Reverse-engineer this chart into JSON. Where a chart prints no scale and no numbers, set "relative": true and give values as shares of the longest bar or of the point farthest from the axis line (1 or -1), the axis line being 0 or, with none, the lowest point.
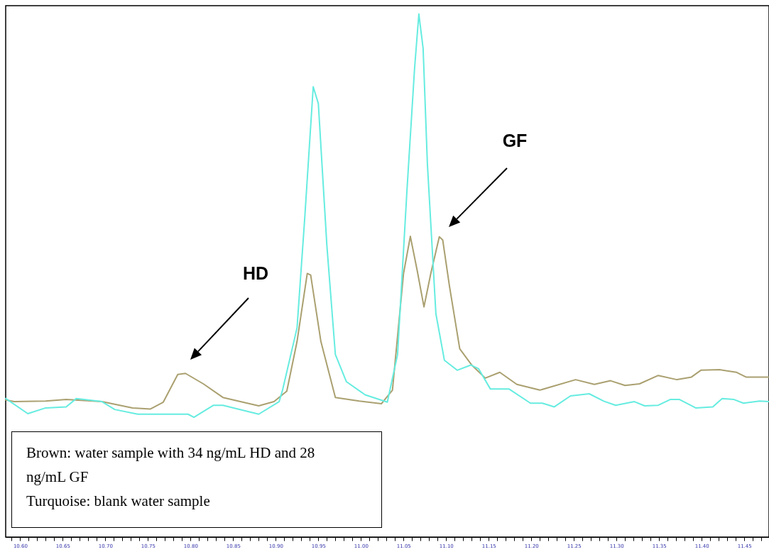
{
  "chart_data": {
    "type": "line",
    "relative": true,
    "tick_labels": "x",
    "line_style": "solid",
    "xlim": [
      10.583,
      11.479
    ],
    "xticks": [
      {
        "value": 10.59,
        "label": null
      },
      {
        "value": 10.6,
        "label": "10.60"
      },
      {
        "value": 10.61,
        "label": null
      },
      {
        "value": 10.62,
        "label": null
      },
      {
        "value": 10.63,
        "label": null
      },
      {
        "value": 10.64,
        "label": null
      },
      10.65,
      {
        "value": 10.66,
        "label": null
      },
      {
        "value": 10.67,
        "label": null
      },
      {
        "value": 10.68,
        "label": null
      },
      {
        "value": 10.69,
        "label": null
      },
      {
        "value": 10.7,
        "label": "10.70"
      },
      {
        "value": 10.71,
        "label": null
      },
      {
        "value": 10.72,
        "label": null
      },
      {
        "value": 10.73,
        "label": null
      },
      {
        "value": 10.74,
        "label": null
      },
      10.75,
      {
        "value": 10.76,
        "label": null
      },
      {
        "value": 10.77,
        "label": null
      },
      {
        "value": 10.78,
        "label": null
      },
      {
        "value": 10.79,
        "label": null
      },
      {
        "value": 10.8,
        "label": "10.80"
      },
      {
        "value": 10.81,
        "label": null
      },
      {
        "value": 10.82,
        "label": null
      },
      {
        "value": 10.83,
        "label": null
      },
      {
        "value": 10.84,
        "label": null
      },
      10.85,
      {
        "value": 10.86,
        "label": null
      },
      {
        "value": 10.87,
        "label": null
      },
      {
        "value": 10.88,
        "label": null
      },
      {
        "value": 10.89,
        "label": null
      },
      {
        "value": 10.9,
        "label": "10.90"
      },
      {
        "value": 10.91,
        "label": null
      },
      {
        "value": 10.92,
        "label": null
      },
      {
        "value": 10.93,
        "label": null
      },
      {
        "value": 10.94,
        "label": null
      },
      10.95,
      {
        "value": 10.96,
        "label": null
      },
      {
        "value": 10.97,
        "label": null
      },
      {
        "value": 10.98,
        "label": null
      },
      {
        "value": 10.99,
        "label": null
      },
      {
        "value": 11,
        "label": "11.00"
      },
      {
        "value": 11.01,
        "label": null
      },
      {
        "value": 11.02,
        "label": null
      },
      {
        "value": 11.03,
        "label": null
      },
      {
        "value": 11.04,
        "label": null
      },
      11.05,
      {
        "value": 11.06,
        "label": null
      },
      {
        "value": 11.07,
        "label": null
      },
      {
        "value": 11.08,
        "label": null
      },
      {
        "value": 11.09,
        "label": null
      },
      {
        "value": 11.1,
        "label": "11.10"
      },
      {
        "value": 11.11,
        "label": null
      },
      {
        "value": 11.12,
        "label": null
      },
      {
        "value": 11.13,
        "label": null
      },
      {
        "value": 11.14,
        "label": null
      },
      11.15,
      {
        "value": 11.16,
        "label": null
      },
      {
        "value": 11.17,
        "label": null
      },
      {
        "value": 11.18,
        "label": null
      },
      {
        "value": 11.19,
        "label": null
      },
      {
        "value": 11.2,
        "label": "11.20"
      },
      {
        "value": 11.21,
        "label": null
      },
      {
        "value": 11.22,
        "label": null
      },
      {
        "value": 11.23,
        "label": null
      },
      {
        "value": 11.24,
        "label": null
      },
      11.25,
      {
        "value": 11.26,
        "label": null
      },
      {
        "value": 11.27,
        "label": null
      },
      {
        "value": 11.28,
        "label": null
      },
      {
        "value": 11.29,
        "label": null
      },
      {
        "value": 11.3,
        "label": "11.30"
      },
      {
        "value": 11.31,
        "label": null
      },
      {
        "value": 11.32,
        "label": null
      },
      {
        "value": 11.33,
        "label": null
      },
      {
        "value": 11.34,
        "label": null
      },
      11.35,
      {
        "value": 11.36,
        "label": null
      },
      {
        "value": 11.37,
        "label": null
      },
      {
        "value": 11.38,
        "label": null
      },
      {
        "value": 11.39,
        "label": null
      },
      {
        "value": 11.4,
        "label": "11.40"
      },
      {
        "value": 11.41,
        "label": null
      },
      {
        "value": 11.42,
        "label": null
      },
      {
        "value": 11.43,
        "label": null
      },
      {
        "value": 11.44,
        "label": null
      },
      11.45,
      {
        "value": 11.46,
        "label": null
      },
      {
        "value": 11.47,
        "label": null
      }
    ],
    "series": [
      {
        "color": "#aaa070",
        "x": [
          10.583,
          10.593,
          10.63,
          10.654,
          10.696,
          10.732,
          10.753,
          10.768,
          10.785,
          10.794,
          10.815,
          10.838,
          10.88,
          10.898,
          10.913,
          10.925,
          10.937,
          10.941,
          10.953,
          10.97,
          10.998,
          11.024,
          11.037,
          11.05,
          11.058,
          11.066,
          11.074,
          11.082,
          11.092,
          11.096,
          11.104,
          11.116,
          11.13,
          11.146,
          11.163,
          11.183,
          11.21,
          11.252,
          11.274,
          11.293,
          11.31,
          11.327,
          11.349,
          11.371,
          11.388,
          11.399,
          11.421,
          11.441,
          11.452,
          11.479
        ],
        "values": [
          0.262,
          0.259,
          0.26,
          0.263,
          0.259,
          0.247,
          0.245,
          0.258,
          0.311,
          0.313,
          0.293,
          0.267,
          0.251,
          0.259,
          0.279,
          0.374,
          0.504,
          0.501,
          0.374,
          0.267,
          0.26,
          0.255,
          0.281,
          0.504,
          0.575,
          0.51,
          0.44,
          0.504,
          0.574,
          0.568,
          0.479,
          0.36,
          0.329,
          0.304,
          0.315,
          0.292,
          0.281,
          0.301,
          0.292,
          0.299,
          0.29,
          0.293,
          0.309,
          0.301,
          0.306,
          0.319,
          0.32,
          0.315,
          0.306,
          0.306
        ]
      },
      {
        "color": "#66ece0",
        "x": [
          10.583,
          10.609,
          10.63,
          10.654,
          10.666,
          10.696,
          10.711,
          10.738,
          10.797,
          10.804,
          10.827,
          10.838,
          10.88,
          10.904,
          10.908,
          10.925,
          10.934,
          10.944,
          10.95,
          10.96,
          10.97,
          10.983,
          11.005,
          11.031,
          11.043,
          11.054,
          11.063,
          11.068,
          11.073,
          11.078,
          11.088,
          11.098,
          11.113,
          11.129,
          11.138,
          11.152,
          11.174,
          11.199,
          11.213,
          11.227,
          11.246,
          11.268,
          11.285,
          11.299,
          11.321,
          11.333,
          11.349,
          11.363,
          11.374,
          11.393,
          11.413,
          11.424,
          11.438,
          11.449,
          11.468,
          11.479
        ],
        "values": [
          0.265,
          0.236,
          0.247,
          0.249,
          0.265,
          0.259,
          0.244,
          0.235,
          0.235,
          0.229,
          0.252,
          0.252,
          0.235,
          0.259,
          0.281,
          0.4,
          0.609,
          0.861,
          0.829,
          0.558,
          0.349,
          0.297,
          0.272,
          0.258,
          0.349,
          0.662,
          0.897,
          1,
          0.934,
          0.714,
          0.427,
          0.338,
          0.319,
          0.329,
          0.322,
          0.283,
          0.283,
          0.256,
          0.256,
          0.249,
          0.27,
          0.274,
          0.26,
          0.252,
          0.259,
          0.251,
          0.252,
          0.263,
          0.263,
          0.247,
          0.249,
          0.265,
          0.263,
          0.256,
          0.26,
          0.259
        ]
      }
    ],
    "annotations": [
      "HD",
      "GF",
      "Brown: water sample with 34 ng/mL HD and 28 ng/mL GF",
      "Turquoise: blank water sample"
    ]
  }
}
